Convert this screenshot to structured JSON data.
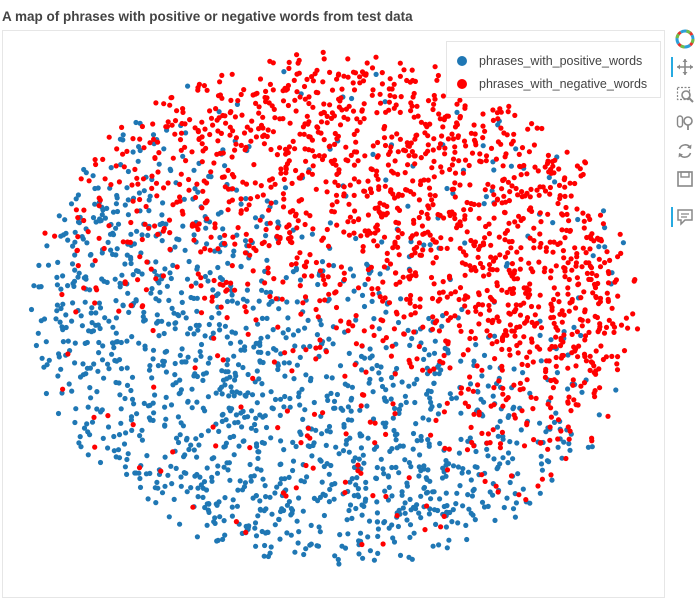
{
  "chart_data": {
    "type": "scatter",
    "title": "A map of phrases with positive or negative words from test data",
    "series": [
      {
        "name": "phrases_with_positive_words",
        "color": "#1f77b4",
        "count": 1500
      },
      {
        "name": "phrases_with_negative_words",
        "color": "#ff0000",
        "count": 1650
      }
    ],
    "xlabel": "",
    "ylabel": "",
    "grid": false,
    "legend_position": "top-right",
    "axes_visible": false,
    "note": "t-SNE style projection; negative phrases concentrated in upper-right, positive in lower-left, points overlap within a roughly circular cloud"
  },
  "toolbar": {
    "items": [
      {
        "name": "bokeh-logo-icon",
        "active": false
      },
      {
        "name": "pan-icon",
        "active": true
      },
      {
        "name": "box-zoom-icon",
        "active": false
      },
      {
        "name": "wheel-zoom-icon",
        "active": false
      },
      {
        "name": "reset-icon",
        "active": false
      },
      {
        "name": "save-icon",
        "active": false
      },
      {
        "name": "hover-icon",
        "active": true
      }
    ]
  }
}
